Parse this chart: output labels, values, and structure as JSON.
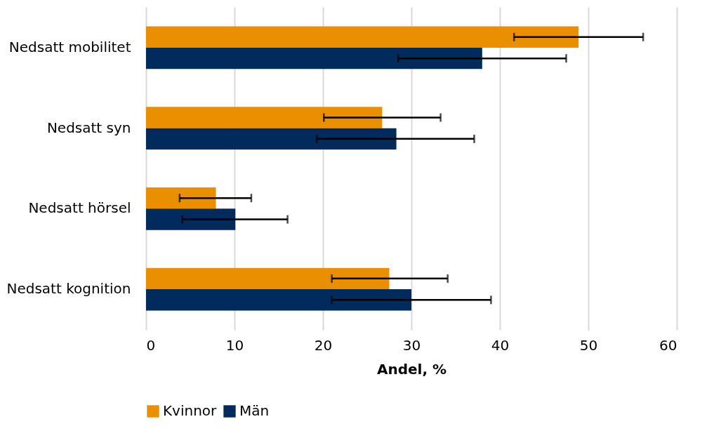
{
  "chart_data": {
    "type": "bar",
    "orientation": "horizontal",
    "xlabel": "Andel, %",
    "categories": [
      "Nedsatt mobilitet",
      "Nedsatt syn",
      "Nedsatt hörsel",
      "Nedsatt kognition"
    ],
    "series": [
      {
        "name": "Kvinnor",
        "color": "#ea8f00",
        "values": [
          48.9,
          26.7,
          7.9,
          27.5
        ],
        "errors": [
          [
            41.6,
            56.2
          ],
          [
            20.1,
            33.3
          ],
          [
            3.8,
            11.9
          ],
          [
            21.0,
            34.1
          ]
        ]
      },
      {
        "name": "Män",
        "color": "#002b5c",
        "values": [
          38.0,
          28.3,
          10.1,
          30.0
        ],
        "errors": [
          [
            28.5,
            47.5
          ],
          [
            19.3,
            37.1
          ],
          [
            4.1,
            16.0
          ],
          [
            21.0,
            39.0
          ]
        ]
      }
    ],
    "xlim": [
      0,
      60
    ],
    "xticks": [
      0,
      10,
      20,
      30,
      40,
      50,
      60
    ],
    "grid": "x",
    "legend": "bottom"
  }
}
